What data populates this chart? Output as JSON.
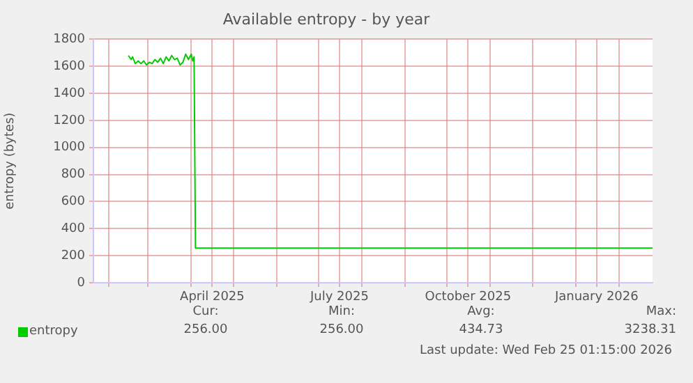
{
  "chart_data": {
    "type": "line",
    "title": "Available entropy - by year",
    "ylabel": "entropy (bytes)",
    "xlim": [
      "2025-01-21",
      "2026-02-25"
    ],
    "xticks": [
      {
        "value": "2025-02-01",
        "label": null
      },
      {
        "value": "2025-03-01",
        "label": null
      },
      {
        "value": "2025-04-01",
        "label": null
      },
      {
        "value": "2025-04-16",
        "label": "April 2025"
      },
      {
        "value": "2025-05-01",
        "label": null
      },
      {
        "value": "2025-06-01",
        "label": null
      },
      {
        "value": "2025-07-01",
        "label": null
      },
      {
        "value": "2025-07-16",
        "label": "July 2025"
      },
      {
        "value": "2025-08-01",
        "label": null
      },
      {
        "value": "2025-09-01",
        "label": null
      },
      {
        "value": "2025-10-01",
        "label": null
      },
      {
        "value": "2025-10-16",
        "label": "October 2025"
      },
      {
        "value": "2025-11-01",
        "label": null
      },
      {
        "value": "2025-12-01",
        "label": null
      },
      {
        "value": "2026-01-01",
        "label": null
      },
      {
        "value": "2026-01-16",
        "label": "January 2026"
      },
      {
        "value": "2026-02-01",
        "label": null
      }
    ],
    "ylim": [
      0,
      1800
    ],
    "yticks": [
      0,
      200,
      400,
      600,
      800,
      1000,
      1200,
      1400,
      1600,
      1800
    ],
    "grid": true,
    "legend": "bottom left",
    "marker": "none",
    "line_style": "solid",
    "series": [
      {
        "name": "entropy",
        "color": "#00cc00",
        "x": [
          "2025-02-15",
          "2025-02-17",
          "2025-02-18",
          "2025-02-20",
          "2025-02-22",
          "2025-02-24",
          "2025-02-26",
          "2025-02-28",
          "2025-03-02",
          "2025-03-04",
          "2025-03-06",
          "2025-03-08",
          "2025-03-10",
          "2025-03-12",
          "2025-03-14",
          "2025-03-16",
          "2025-03-18",
          "2025-03-20",
          "2025-03-22",
          "2025-03-24",
          "2025-03-26",
          "2025-03-28",
          "2025-03-30",
          "2025-04-01",
          "2025-04-02",
          "2025-04-03",
          "2025-04-04",
          "2026-02-25"
        ],
        "values": [
          1680,
          1650,
          1670,
          1620,
          1640,
          1620,
          1640,
          1610,
          1630,
          1620,
          1650,
          1630,
          1660,
          1620,
          1670,
          1640,
          1680,
          1650,
          1660,
          1610,
          1630,
          1690,
          1650,
          1690,
          1640,
          1670,
          256,
          256
        ]
      }
    ],
    "annotations": [
      "Cur:",
      "256.00",
      "Min:",
      "256.00",
      "Avg:",
      "434.73",
      "Max:",
      "3238.31",
      "Last update: Wed Feb 25 01:15:00 2026"
    ]
  }
}
